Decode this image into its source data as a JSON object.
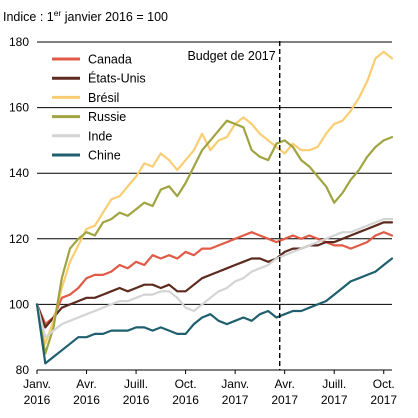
{
  "chart_data": {
    "type": "line",
    "title_prefix": "Indice : 1",
    "title_sup": "er",
    "title_suffix": " janvier 2016 = 100",
    "ylim": [
      80,
      180
    ],
    "yticks": [
      "80",
      "100",
      "120",
      "140",
      "160",
      "180"
    ],
    "xlim": [
      0,
      21.5
    ],
    "xticks": [
      {
        "x": 0,
        "line1": "Janv.",
        "line2": "2016"
      },
      {
        "x": 3,
        "line1": "Avr.",
        "line2": "2016"
      },
      {
        "x": 6,
        "line1": "Juill.",
        "line2": "2016"
      },
      {
        "x": 9,
        "line1": "Oct.",
        "line2": "2016"
      },
      {
        "x": 12,
        "line1": "Janv.",
        "line2": "2017"
      },
      {
        "x": 15,
        "line1": "Avr.",
        "line2": "2017"
      },
      {
        "x": 18,
        "line1": "Juill.",
        "line2": "2017"
      },
      {
        "x": 21,
        "line1": "Oct.",
        "line2": "2017"
      }
    ],
    "annotation": {
      "label": "Budget de 2017",
      "x": 14.7
    },
    "legend_position": "top-left",
    "series": [
      {
        "name": "Canada",
        "color": "#e05a46",
        "x": [
          0,
          0.5,
          1,
          1.5,
          2,
          2.5,
          3,
          3.5,
          4,
          4.5,
          5,
          5.5,
          6,
          6.5,
          7,
          7.5,
          8,
          8.5,
          9,
          9.5,
          10,
          10.5,
          11,
          11.5,
          12,
          12.5,
          13,
          13.5,
          14,
          14.5,
          15,
          15.5,
          16,
          16.5,
          17,
          17.5,
          18,
          18.5,
          19,
          19.5,
          20,
          20.5,
          21,
          21.5
        ],
        "y": [
          100,
          94,
          96,
          102,
          103,
          105,
          108,
          109,
          109,
          110,
          112,
          111,
          113,
          112,
          115,
          114,
          115,
          114,
          116,
          115,
          117,
          117,
          118,
          119,
          120,
          121,
          122,
          121,
          120,
          119,
          120,
          121,
          120,
          121,
          120,
          119,
          118,
          118,
          117,
          118,
          119,
          121,
          122,
          121
        ]
      },
      {
        "name": "États-Unis",
        "color": "#5c2a1e",
        "x": [
          0,
          0.5,
          1,
          1.5,
          2,
          2.5,
          3,
          3.5,
          4,
          4.5,
          5,
          5.5,
          6,
          6.5,
          7,
          7.5,
          8,
          8.5,
          9,
          9.5,
          10,
          10.5,
          11,
          11.5,
          12,
          12.5,
          13,
          13.5,
          14,
          14.5,
          15,
          15.5,
          16,
          16.5,
          17,
          17.5,
          18,
          18.5,
          19,
          19.5,
          20,
          20.5,
          21,
          21.5
        ],
        "y": [
          100,
          93,
          96,
          99,
          100,
          101,
          102,
          102,
          103,
          104,
          105,
          104,
          105,
          106,
          106,
          105,
          106,
          104,
          104,
          106,
          108,
          109,
          110,
          111,
          112,
          113,
          114,
          114,
          113,
          114,
          116,
          117,
          117,
          118,
          118,
          119,
          119,
          120,
          121,
          122,
          123,
          124,
          125,
          125
        ]
      },
      {
        "name": "Brésil",
        "color": "#fbcd72",
        "x": [
          0,
          0.5,
          1,
          1.5,
          2,
          2.5,
          3,
          3.5,
          4,
          4.5,
          5,
          5.5,
          6,
          6.5,
          7,
          7.5,
          8,
          8.5,
          9,
          9.5,
          10,
          10.5,
          11,
          11.5,
          12,
          12.5,
          13,
          13.5,
          14,
          14.5,
          15,
          15.5,
          16,
          16.5,
          17,
          17.5,
          18,
          18.5,
          19,
          19.5,
          20,
          20.5,
          21,
          21.5
        ],
        "y": [
          100,
          88,
          95,
          105,
          113,
          118,
          123,
          124,
          128,
          132,
          133,
          136,
          139,
          143,
          142,
          146,
          144,
          141,
          144,
          147,
          152,
          147,
          150,
          151,
          155,
          157,
          155,
          152,
          150,
          148,
          146,
          149,
          147,
          147,
          148,
          152,
          155,
          156,
          159,
          163,
          168,
          175,
          177,
          175
        ]
      },
      {
        "name": "Russie",
        "color": "#a0a440",
        "x": [
          0,
          0.5,
          1,
          1.5,
          2,
          2.5,
          3,
          3.5,
          4,
          4.5,
          5,
          5.5,
          6,
          6.5,
          7,
          7.5,
          8,
          8.5,
          9,
          9.5,
          10,
          10.5,
          11,
          11.5,
          12,
          12.5,
          13,
          13.5,
          14,
          14.5,
          15,
          15.5,
          16,
          16.5,
          17,
          17.5,
          18,
          18.5,
          19,
          19.5,
          20,
          20.5,
          21,
          21.5
        ],
        "y": [
          100,
          85,
          93,
          108,
          117,
          120,
          122,
          121,
          125,
          126,
          128,
          127,
          129,
          131,
          130,
          135,
          136,
          133,
          137,
          142,
          147,
          150,
          153,
          156,
          155,
          154,
          147,
          145,
          144,
          149,
          150,
          148,
          144,
          142,
          139,
          136,
          131,
          134,
          138,
          141,
          145,
          148,
          150,
          151
        ]
      },
      {
        "name": "Inde",
        "color": "#d4d4d4",
        "x": [
          0,
          0.5,
          1,
          1.5,
          2,
          2.5,
          3,
          3.5,
          4,
          4.5,
          5,
          5.5,
          6,
          6.5,
          7,
          7.5,
          8,
          8.5,
          9,
          9.5,
          10,
          10.5,
          11,
          11.5,
          12,
          12.5,
          13,
          13.5,
          14,
          14.5,
          15,
          15.5,
          16,
          16.5,
          17,
          17.5,
          18,
          18.5,
          19,
          19.5,
          20,
          20.5,
          21,
          21.5
        ],
        "y": [
          100,
          90,
          92,
          94,
          95,
          96,
          97,
          98,
          99,
          100,
          101,
          101,
          102,
          103,
          103,
          104,
          104,
          102,
          99,
          98,
          100,
          102,
          104,
          105,
          107,
          108,
          110,
          111,
          112,
          114,
          115,
          116,
          117,
          118,
          119,
          120,
          121,
          122,
          122,
          123,
          124,
          125,
          126,
          126
        ]
      },
      {
        "name": "Chine",
        "color": "#1f5f6e",
        "x": [
          0,
          0.5,
          1,
          1.5,
          2,
          2.5,
          3,
          3.5,
          4,
          4.5,
          5,
          5.5,
          6,
          6.5,
          7,
          7.5,
          8,
          8.5,
          9,
          9.5,
          10,
          10.5,
          11,
          11.5,
          12,
          12.5,
          13,
          13.5,
          14,
          14.5,
          15,
          15.5,
          16,
          16.5,
          17,
          17.5,
          18,
          18.5,
          19,
          19.5,
          20,
          20.5,
          21,
          21.5
        ],
        "y": [
          100,
          82,
          84,
          86,
          88,
          90,
          90,
          91,
          91,
          92,
          92,
          92,
          93,
          93,
          92,
          93,
          92,
          91,
          91,
          94,
          96,
          97,
          95,
          94,
          95,
          96,
          95,
          97,
          98,
          96,
          97,
          98,
          98,
          99,
          100,
          101,
          103,
          105,
          107,
          108,
          109,
          110,
          112,
          114
        ]
      }
    ]
  }
}
